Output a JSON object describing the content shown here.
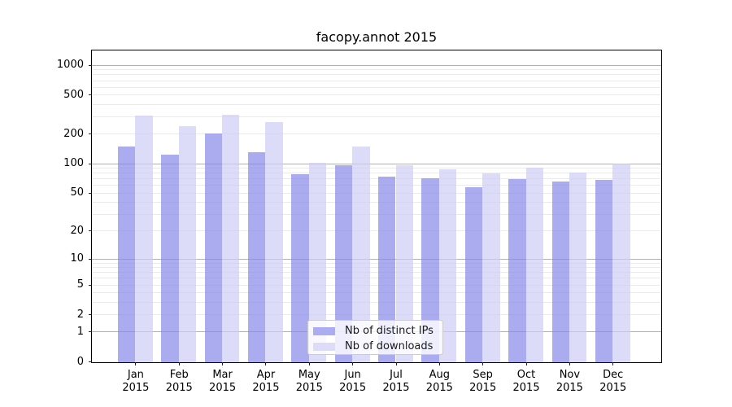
{
  "title": "facopy.annot 2015",
  "chart_data": {
    "type": "bar",
    "title": "facopy.annot 2015",
    "scale": "log1p",
    "grid": "both",
    "categories": [
      "Jan 2015",
      "Feb 2015",
      "Mar 2015",
      "Apr 2015",
      "May 2015",
      "Jun 2015",
      "Jul 2015",
      "Aug 2015",
      "Sep 2015",
      "Oct 2015",
      "Nov 2015",
      "Dec 2015"
    ],
    "series": [
      {
        "name": "Nb of distinct IPs",
        "color": "#acacf0",
        "values": [
          150,
          124,
          204,
          132,
          79,
          97,
          74,
          72,
          58,
          70,
          67,
          69
        ]
      },
      {
        "name": "Nb of downloads",
        "color": "#dcdcf8",
        "values": [
          315,
          245,
          320,
          270,
          103,
          150,
          98,
          89,
          81,
          92,
          82,
          102
        ]
      }
    ],
    "yticks": [
      0,
      1,
      2,
      5,
      10,
      20,
      50,
      100,
      200,
      500,
      1000
    ],
    "major_grid_values": [
      1,
      10,
      100,
      1000
    ],
    "ylim": [
      0,
      1380
    ],
    "xlabel": "",
    "ylabel": "",
    "bar_fill_alpha": 0.7,
    "legend": {
      "position": "lower-center"
    },
    "colors": {
      "major_grid": "#b0b0b0",
      "minor_grid": "#eaeaea",
      "axis": "#000000",
      "tick_text": "#000000"
    }
  }
}
